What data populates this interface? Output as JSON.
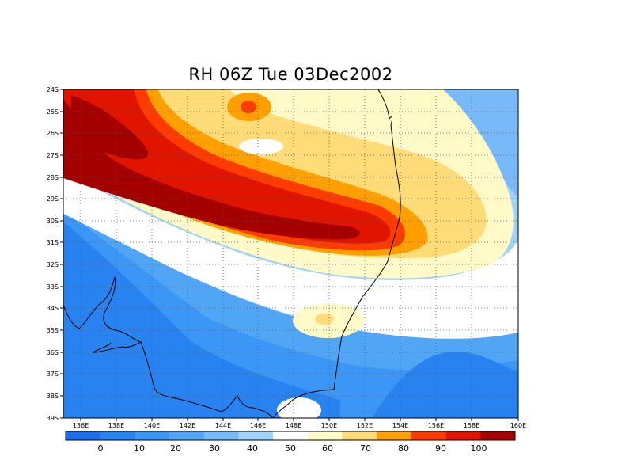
{
  "title": "RH 06Z Tue 03Dec2002",
  "map": {
    "lon_labels": [
      "136E",
      "138E",
      "140E",
      "142E",
      "144E",
      "146E",
      "148E",
      "150E",
      "152E",
      "154E",
      "156E",
      "158E",
      "160E"
    ],
    "lat_labels": [
      "24S",
      "25S",
      "26S",
      "27S",
      "28S",
      "29S",
      "30S",
      "31S",
      "32S",
      "33S",
      "34S",
      "35S",
      "36S",
      "37S",
      "38S",
      "39S"
    ],
    "grid": "dotted"
  },
  "colorbar": {
    "labels": [
      "0",
      "10",
      "20",
      "30",
      "40",
      "50",
      "60",
      "70",
      "80",
      "90",
      "100"
    ],
    "colors": [
      "#1e6eeb",
      "#2882f0",
      "#3c96f5",
      "#50a5f5",
      "#78b9fa",
      "#a0d2fa",
      "#ffffff",
      "#fffac8",
      "#ffdc78",
      "#ffa000",
      "#ff3c00",
      "#e11400",
      "#a50000"
    ]
  },
  "palette": {
    "c_lt_blue": "#a0d2fa",
    "c_sky": "#78b9fa",
    "c_mid_blue": "#50a5f5",
    "c_blue": "#3c96f5",
    "c_dk_blue": "#2882f0",
    "c_white": "#ffffff",
    "c_pale_yellow": "#fffac8",
    "c_yellow": "#ffdc78",
    "c_orange": "#ffa000",
    "c_red_orange": "#ff3c00",
    "c_red": "#e11400",
    "c_dark_red": "#a50000"
  }
}
